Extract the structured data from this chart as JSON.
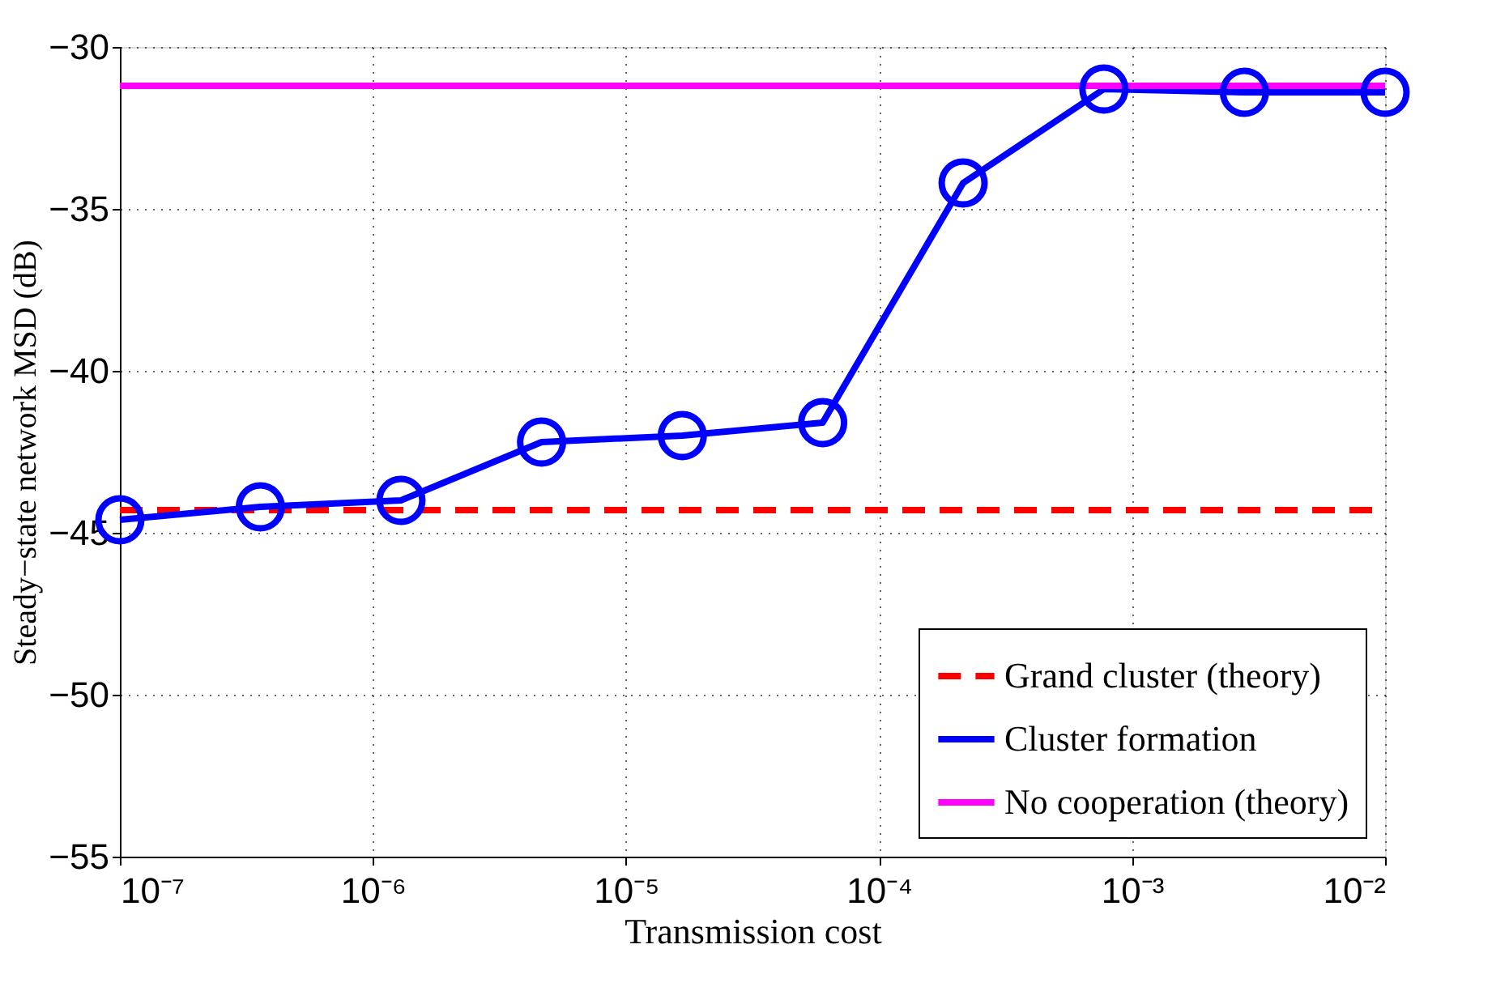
{
  "chart_data": {
    "type": "line",
    "xlabel": "Transmission cost",
    "ylabel": "Steady−state network MSD (dB)",
    "log": "x",
    "xlim": [
      1e-07,
      0.01
    ],
    "xticks": [
      {
        "value": 1e-07,
        "label": "10⁻⁷"
      },
      {
        "value": 1e-06,
        "label": "10⁻⁶"
      },
      {
        "value": 1e-05,
        "label": "10⁻⁵"
      },
      {
        "value": 0.0001,
        "label": "10⁻⁴"
      },
      {
        "value": 0.001,
        "label": "10⁻³"
      },
      {
        "value": 0.01,
        "label": "10⁻²"
      }
    ],
    "ylim": [
      -55,
      -30
    ],
    "yticks": [
      -55,
      -50,
      -45,
      -40,
      -35,
      -30
    ],
    "grid": true,
    "legend": "bottom right",
    "series": [
      {
        "name": "Grand cluster (theory)",
        "color": "#ff0000",
        "line_style": "dashed",
        "marker": "none",
        "x": [
          1e-07,
          0.01
        ],
        "values": [
          -44.3,
          -44.3
        ]
      },
      {
        "name": "Cluster formation",
        "color": "#0000ff",
        "line_style": "solid",
        "marker": "circle",
        "x": [
          1e-07,
          3.59e-07,
          1.29e-06,
          4.64e-06,
          1.67e-05,
          5.99e-05,
          0.000215,
          0.000774,
          0.00278,
          0.01
        ],
        "values": [
          -44.6,
          -44.2,
          -44.0,
          -42.2,
          -42.0,
          -41.6,
          -34.2,
          -31.3,
          -31.4,
          -31.4
        ]
      },
      {
        "name": "No cooperation (theory)",
        "color": "#ff00ff",
        "line_style": "solid",
        "marker": "none",
        "x": [
          1e-07,
          0.01
        ],
        "values": [
          -31.2,
          -31.2
        ]
      }
    ]
  }
}
